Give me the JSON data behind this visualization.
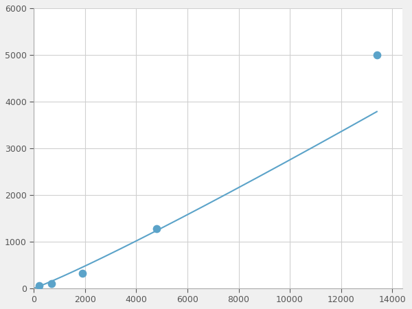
{
  "x_points": [
    200,
    700,
    1900,
    4800,
    13400
  ],
  "y_points": [
    60,
    100,
    320,
    1280,
    5000
  ],
  "line_color": "#5ba3c9",
  "marker_color": "#5ba3c9",
  "marker_size": 55,
  "line_width": 1.5,
  "xlim": [
    0,
    14400
  ],
  "ylim": [
    0,
    6000
  ],
  "xticks": [
    0,
    2000,
    4000,
    6000,
    8000,
    10000,
    12000,
    14000
  ],
  "yticks": [
    0,
    1000,
    2000,
    3000,
    4000,
    5000,
    6000
  ],
  "xtick_labels": [
    "0",
    "2000",
    "4000",
    "6000",
    "8000",
    "10000",
    "12000",
    "14000"
  ],
  "ytick_labels": [
    "0",
    "1000",
    "2000",
    "3000",
    "4000",
    "5000",
    "6000"
  ],
  "grid_color": "#d0d0d0",
  "plot_bg": "#ffffff",
  "figure_bg": "#f0f0f0"
}
